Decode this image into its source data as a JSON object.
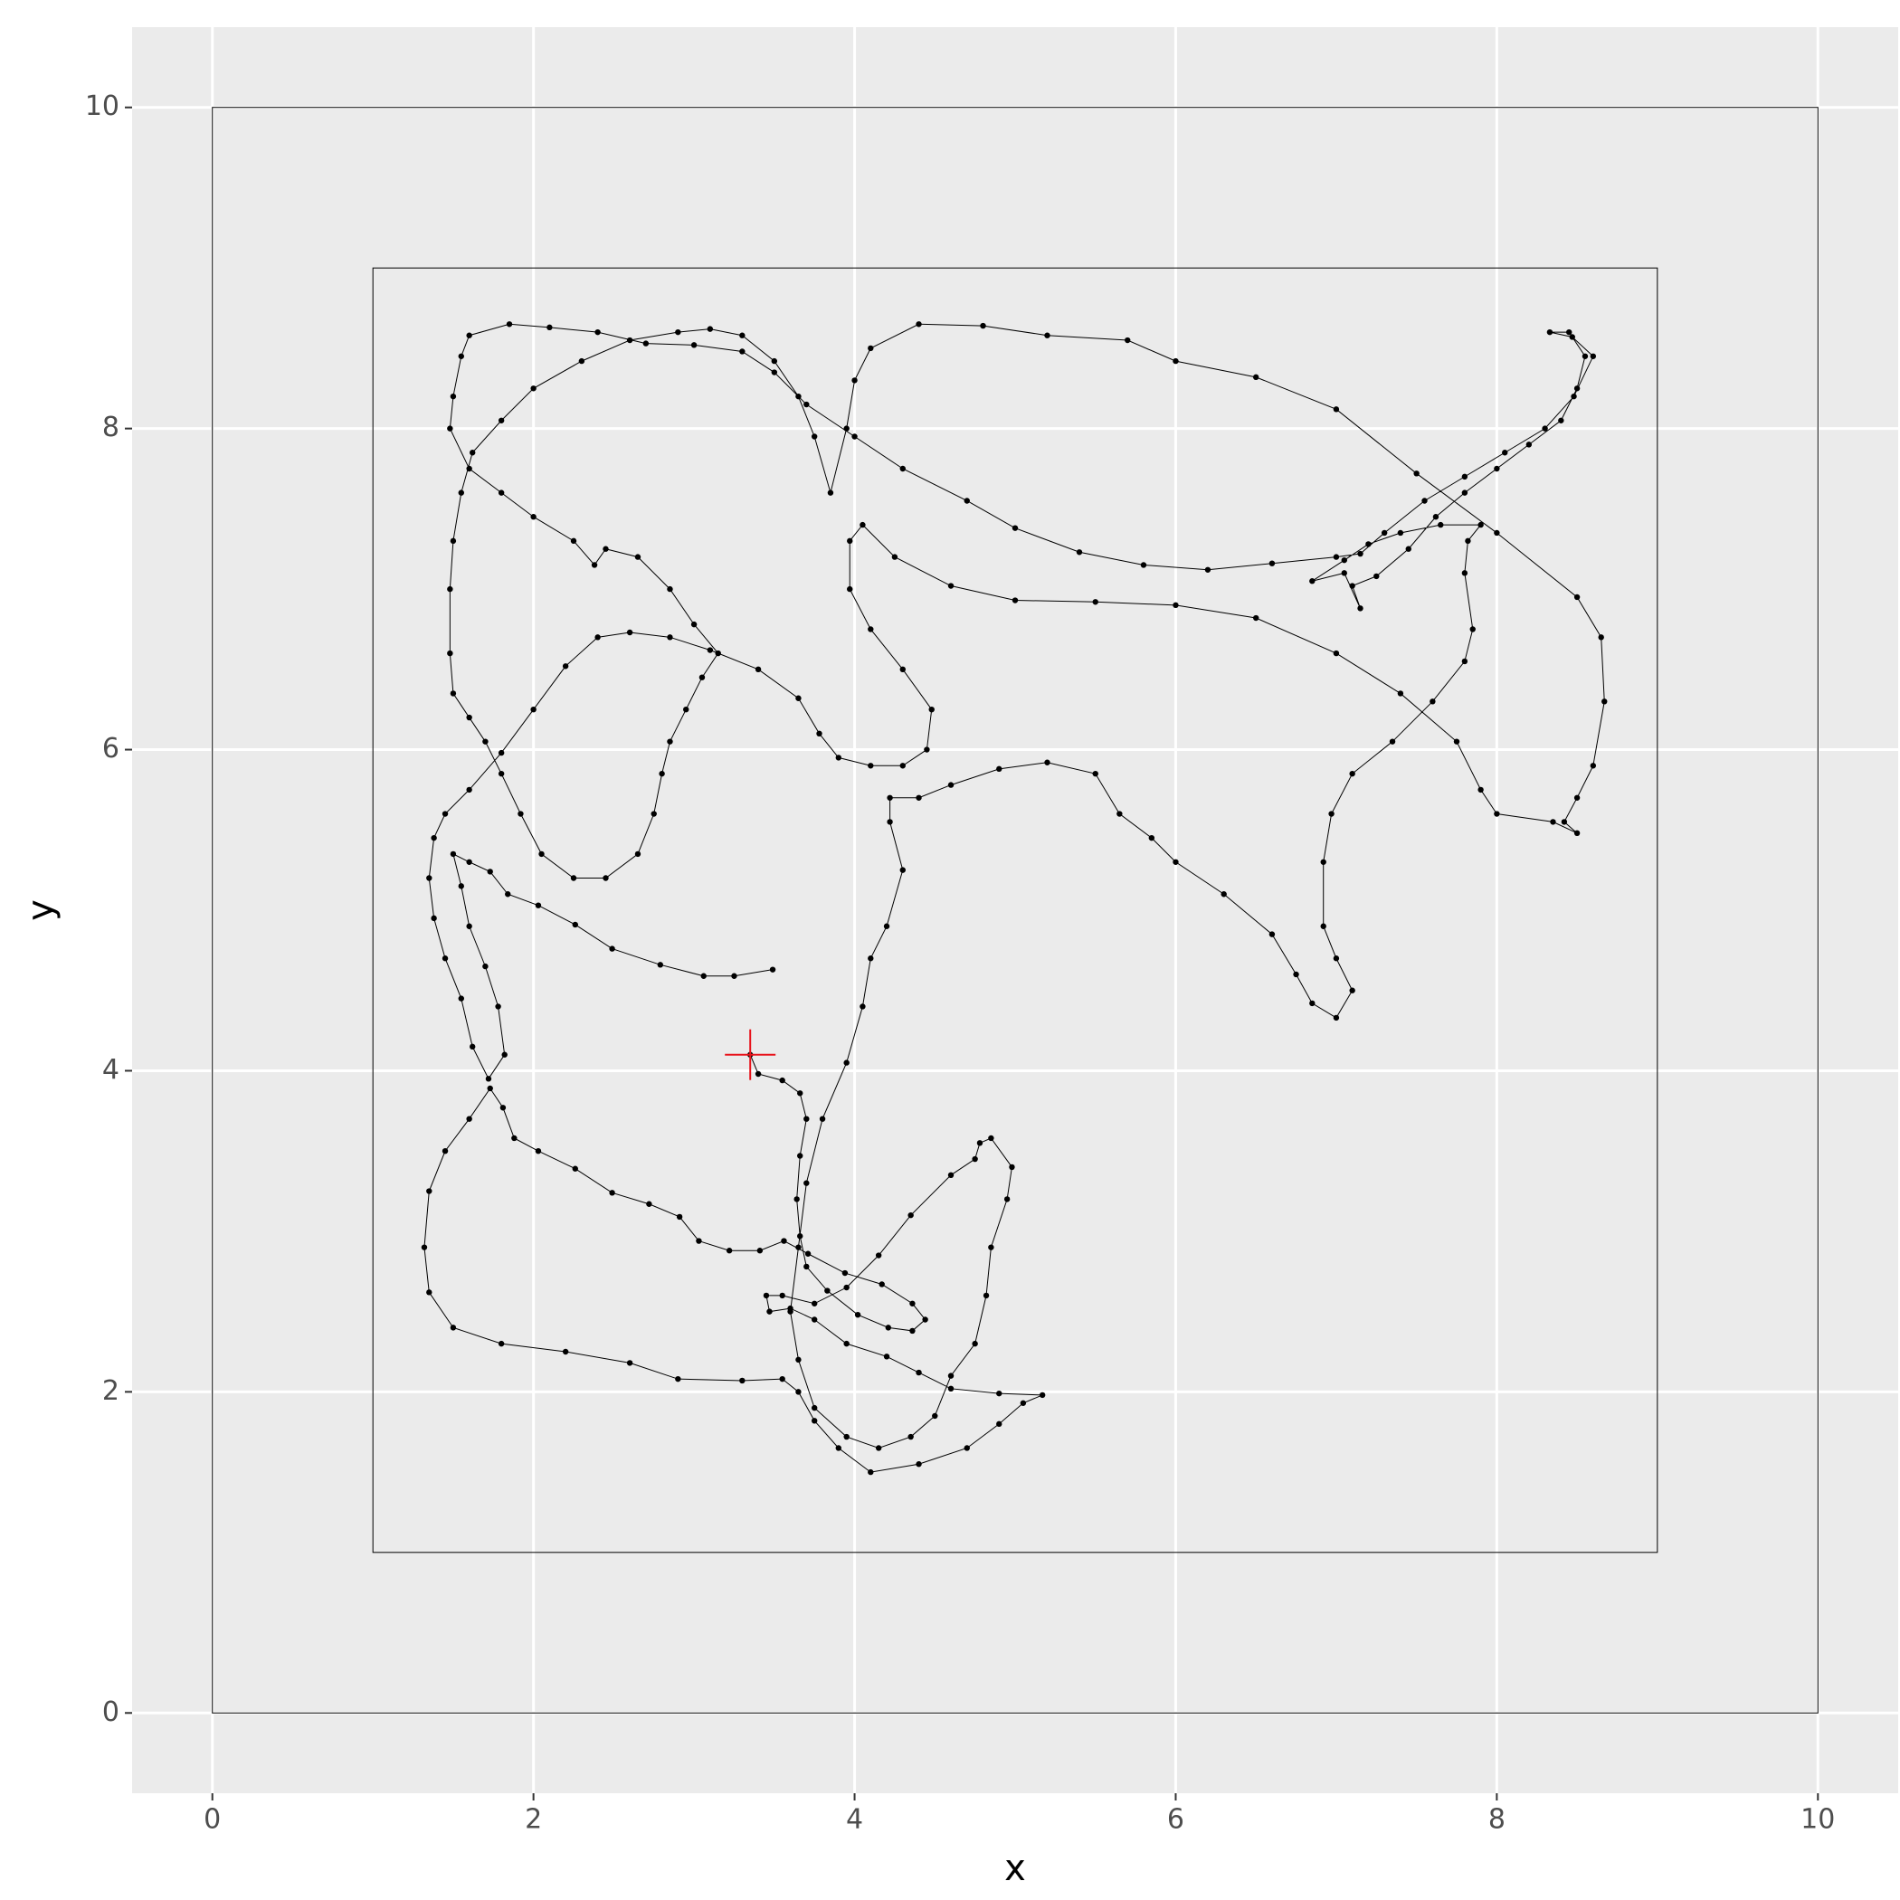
{
  "chart_data": {
    "type": "path",
    "xlabel": "x",
    "ylabel": "y",
    "xlim": [
      -0.5,
      10.5
    ],
    "ylim": [
      -0.5,
      10.5
    ],
    "xticks": [
      0,
      2,
      4,
      6,
      8,
      10
    ],
    "yticks": [
      0,
      2,
      4,
      6,
      8,
      10
    ],
    "grid": true,
    "color": "#000000",
    "boxes": [
      {
        "x": [
          0,
          10
        ],
        "y": [
          0,
          10
        ]
      },
      {
        "x": [
          1,
          9
        ],
        "y": [
          1,
          9
        ]
      }
    ],
    "start": {
      "x": 3.35,
      "y": 4.1,
      "color": "#e8141c"
    },
    "x": [
      3.35,
      3.4,
      3.55,
      3.66,
      3.7,
      3.66,
      3.64,
      3.66,
      3.7,
      3.83,
      4.02,
      4.21,
      4.36,
      4.44,
      4.36,
      4.17,
      3.94,
      3.71,
      3.56,
      3.41,
      3.22,
      3.03,
      2.91,
      2.72,
      2.49,
      2.26,
      2.03,
      1.88,
      1.81,
      1.73,
      1.6,
      1.45,
      1.35,
      1.32,
      1.35,
      1.5,
      1.8,
      2.2,
      2.6,
      2.9,
      3.3,
      3.55,
      3.65,
      3.75,
      3.9,
      4.1,
      4.4,
      4.7,
      4.9,
      5.05,
      5.17,
      4.9,
      4.6,
      4.4,
      4.2,
      3.95,
      3.75,
      3.6,
      3.47,
      3.45,
      3.55,
      3.75,
      3.95,
      4.15,
      4.35,
      4.6,
      4.75,
      4.78,
      4.85,
      4.98,
      4.95,
      4.85,
      4.82,
      4.75,
      4.6,
      4.5,
      4.35,
      4.15,
      3.95,
      3.75,
      3.65,
      3.6,
      3.65,
      3.7,
      3.8,
      3.95,
      4.05,
      4.1,
      4.2,
      4.3,
      4.22,
      4.22,
      4.4,
      4.6,
      4.9,
      5.2,
      5.5,
      5.65,
      5.85,
      6.0,
      6.3,
      6.6,
      6.75,
      6.85,
      7.0,
      7.1,
      7.0,
      6.92,
      6.92,
      6.97,
      7.1,
      7.35,
      7.6,
      7.8,
      7.85,
      7.8,
      7.82,
      7.9,
      7.65,
      7.4,
      7.2,
      7.05,
      6.85,
      7.05,
      7.15,
      7.1,
      7.25,
      7.45,
      7.62,
      7.8,
      8.0,
      8.2,
      8.4,
      8.5,
      8.55,
      8.45,
      8.33,
      8.47,
      8.6,
      8.48,
      8.3,
      8.05,
      7.8,
      7.55,
      7.3,
      7.15,
      7.0,
      6.6,
      6.2,
      5.8,
      5.4,
      5.0,
      4.7,
      4.3,
      4.0,
      3.7,
      3.5,
      3.3,
      3.0,
      2.7,
      2.4,
      2.1,
      1.85,
      1.6,
      1.55,
      1.5,
      1.48,
      1.6,
      1.8,
      2.0,
      2.25,
      2.38,
      2.45,
      2.65,
      2.85,
      3.0,
      3.15,
      3.05,
      2.95,
      2.85,
      2.8,
      2.75,
      2.65,
      2.45,
      2.25,
      2.05,
      1.92,
      1.8,
      1.7,
      1.6,
      1.5,
      1.48,
      1.48,
      1.5,
      1.55,
      1.62,
      1.8,
      2.0,
      2.3,
      2.6,
      2.9,
      3.1,
      3.3,
      3.5,
      3.65,
      3.75,
      3.85,
      3.95,
      4.0,
      4.1,
      4.4,
      4.8,
      5.2,
      5.7,
      6.0,
      6.5,
      7.0,
      7.5,
      8.0,
      8.5,
      8.65,
      8.67,
      8.6,
      8.5,
      8.42,
      8.5,
      8.35,
      8.0,
      7.9,
      7.75,
      7.4,
      7.0,
      6.5,
      6.0,
      5.5,
      5.0,
      4.6,
      4.25,
      4.05,
      3.97,
      3.97,
      4.1,
      4.3,
      4.48,
      4.45,
      4.3,
      4.1,
      3.9,
      3.78,
      3.65,
      3.4,
      3.1,
      2.85,
      2.6,
      2.4,
      2.2,
      2.0,
      1.8,
      1.6,
      1.45,
      1.38,
      1.35,
      1.38,
      1.45,
      1.55,
      1.62,
      1.72,
      1.82,
      1.78,
      1.7,
      1.6,
      1.55,
      1.5,
      1.6,
      1.73,
      1.84,
      2.03,
      2.26,
      2.49,
      2.79,
      3.06,
      3.25,
      3.49
    ],
    "values": [
      4.1,
      3.98,
      3.94,
      3.86,
      3.7,
      3.47,
      3.2,
      2.97,
      2.78,
      2.63,
      2.48,
      2.4,
      2.38,
      2.45,
      2.55,
      2.67,
      2.74,
      2.86,
      2.94,
      2.88,
      2.88,
      2.94,
      3.09,
      3.17,
      3.24,
      3.39,
      3.5,
      3.58,
      3.77,
      3.89,
      3.7,
      3.5,
      3.25,
      2.9,
      2.62,
      2.4,
      2.3,
      2.25,
      2.18,
      2.08,
      2.07,
      2.08,
      2.0,
      1.82,
      1.65,
      1.5,
      1.55,
      1.65,
      1.8,
      1.93,
      1.98,
      1.99,
      2.02,
      2.12,
      2.22,
      2.3,
      2.45,
      2.52,
      2.5,
      2.6,
      2.6,
      2.55,
      2.65,
      2.85,
      3.1,
      3.35,
      3.45,
      3.55,
      3.58,
      3.4,
      3.2,
      2.9,
      2.6,
      2.3,
      2.1,
      1.85,
      1.72,
      1.65,
      1.72,
      1.9,
      2.2,
      2.5,
      2.9,
      3.3,
      3.7,
      4.05,
      4.4,
      4.7,
      4.9,
      5.25,
      5.55,
      5.7,
      5.7,
      5.78,
      5.88,
      5.92,
      5.85,
      5.6,
      5.45,
      5.3,
      5.1,
      4.85,
      4.6,
      4.42,
      4.33,
      4.5,
      4.7,
      4.9,
      5.3,
      5.6,
      5.85,
      6.05,
      6.3,
      6.55,
      6.75,
      7.1,
      7.3,
      7.4,
      7.4,
      7.35,
      7.28,
      7.18,
      7.05,
      7.1,
      6.88,
      7.02,
      7.08,
      7.25,
      7.45,
      7.6,
      7.75,
      7.9,
      8.05,
      8.25,
      8.45,
      8.6,
      8.6,
      8.57,
      8.45,
      8.2,
      8.0,
      7.85,
      7.7,
      7.55,
      7.35,
      7.22,
      7.2,
      7.16,
      7.12,
      7.15,
      7.23,
      7.38,
      7.55,
      7.75,
      7.95,
      8.15,
      8.35,
      8.48,
      8.52,
      8.53,
      8.6,
      8.63,
      8.65,
      8.58,
      8.45,
      8.2,
      8.0,
      7.75,
      7.6,
      7.45,
      7.3,
      7.15,
      7.25,
      7.2,
      7.0,
      6.78,
      6.6,
      6.45,
      6.25,
      6.05,
      5.85,
      5.6,
      5.35,
      5.2,
      5.2,
      5.35,
      5.6,
      5.85,
      6.05,
      6.2,
      6.35,
      6.6,
      7.0,
      7.3,
      7.6,
      7.85,
      8.05,
      8.25,
      8.42,
      8.55,
      8.6,
      8.62,
      8.58,
      8.42,
      8.2,
      7.95,
      7.6,
      8.0,
      8.3,
      8.5,
      8.65,
      8.64,
      8.58,
      8.55,
      8.42,
      8.32,
      8.12,
      7.72,
      7.35,
      6.95,
      6.7,
      6.3,
      5.9,
      5.7,
      5.55,
      5.48,
      5.55,
      5.6,
      5.75,
      6.05,
      6.35,
      6.6,
      6.82,
      6.9,
      6.92,
      6.93,
      7.02,
      7.2,
      7.4,
      7.3,
      7.0,
      6.75,
      6.5,
      6.25,
      6.0,
      5.9,
      5.9,
      5.95,
      6.1,
      6.32,
      6.5,
      6.62,
      6.7,
      6.73,
      6.7,
      6.52,
      6.25,
      5.98,
      5.75,
      5.6,
      5.45,
      5.2,
      4.95,
      4.7,
      4.45,
      4.15,
      3.95,
      4.1,
      4.4,
      4.65,
      4.9,
      5.15,
      5.35,
      5.3,
      5.24,
      5.1,
      5.03,
      4.91,
      4.76,
      4.66,
      4.59,
      4.59,
      4.63
    ]
  }
}
